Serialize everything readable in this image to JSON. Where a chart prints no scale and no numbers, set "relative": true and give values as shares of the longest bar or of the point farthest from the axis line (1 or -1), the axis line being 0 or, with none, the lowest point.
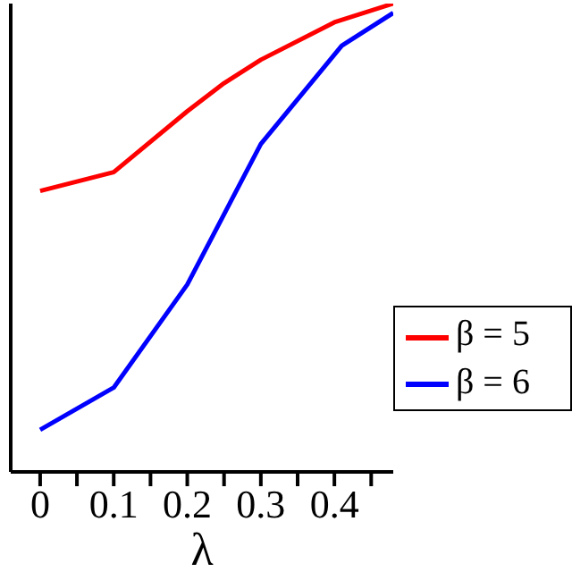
{
  "chart_data": {
    "type": "line",
    "xlabel": "λ",
    "relative": true,
    "tick_labels": "x",
    "marker": "none",
    "line_style": "solid",
    "legend": "bottom right",
    "grid": false,
    "xlim": [
      -0.04,
      0.48
    ],
    "xticks": [
      0,
      {
        "value": 0.05,
        "label": null
      },
      0.1,
      {
        "value": 0.15,
        "label": null
      },
      0.2,
      {
        "value": 0.25,
        "label": null
      },
      0.3,
      {
        "value": 0.35,
        "label": null
      },
      0.4,
      {
        "value": 0.45,
        "label": null
      }
    ],
    "series": [
      {
        "name": "β = 5",
        "color": "#ff0000",
        "x": [
          0,
          0.1,
          0.2,
          0.25,
          0.3,
          0.4,
          0.48
        ],
        "values": [
          0.6,
          0.64,
          0.77,
          0.83,
          0.88,
          0.96,
          1.0
        ]
      },
      {
        "name": "β = 6",
        "color": "#0000ff",
        "x": [
          0,
          0.1,
          0.2,
          0.3,
          0.41,
          0.48
        ],
        "values": [
          0.09,
          0.18,
          0.4,
          0.7,
          0.91,
          0.98
        ]
      }
    ]
  }
}
